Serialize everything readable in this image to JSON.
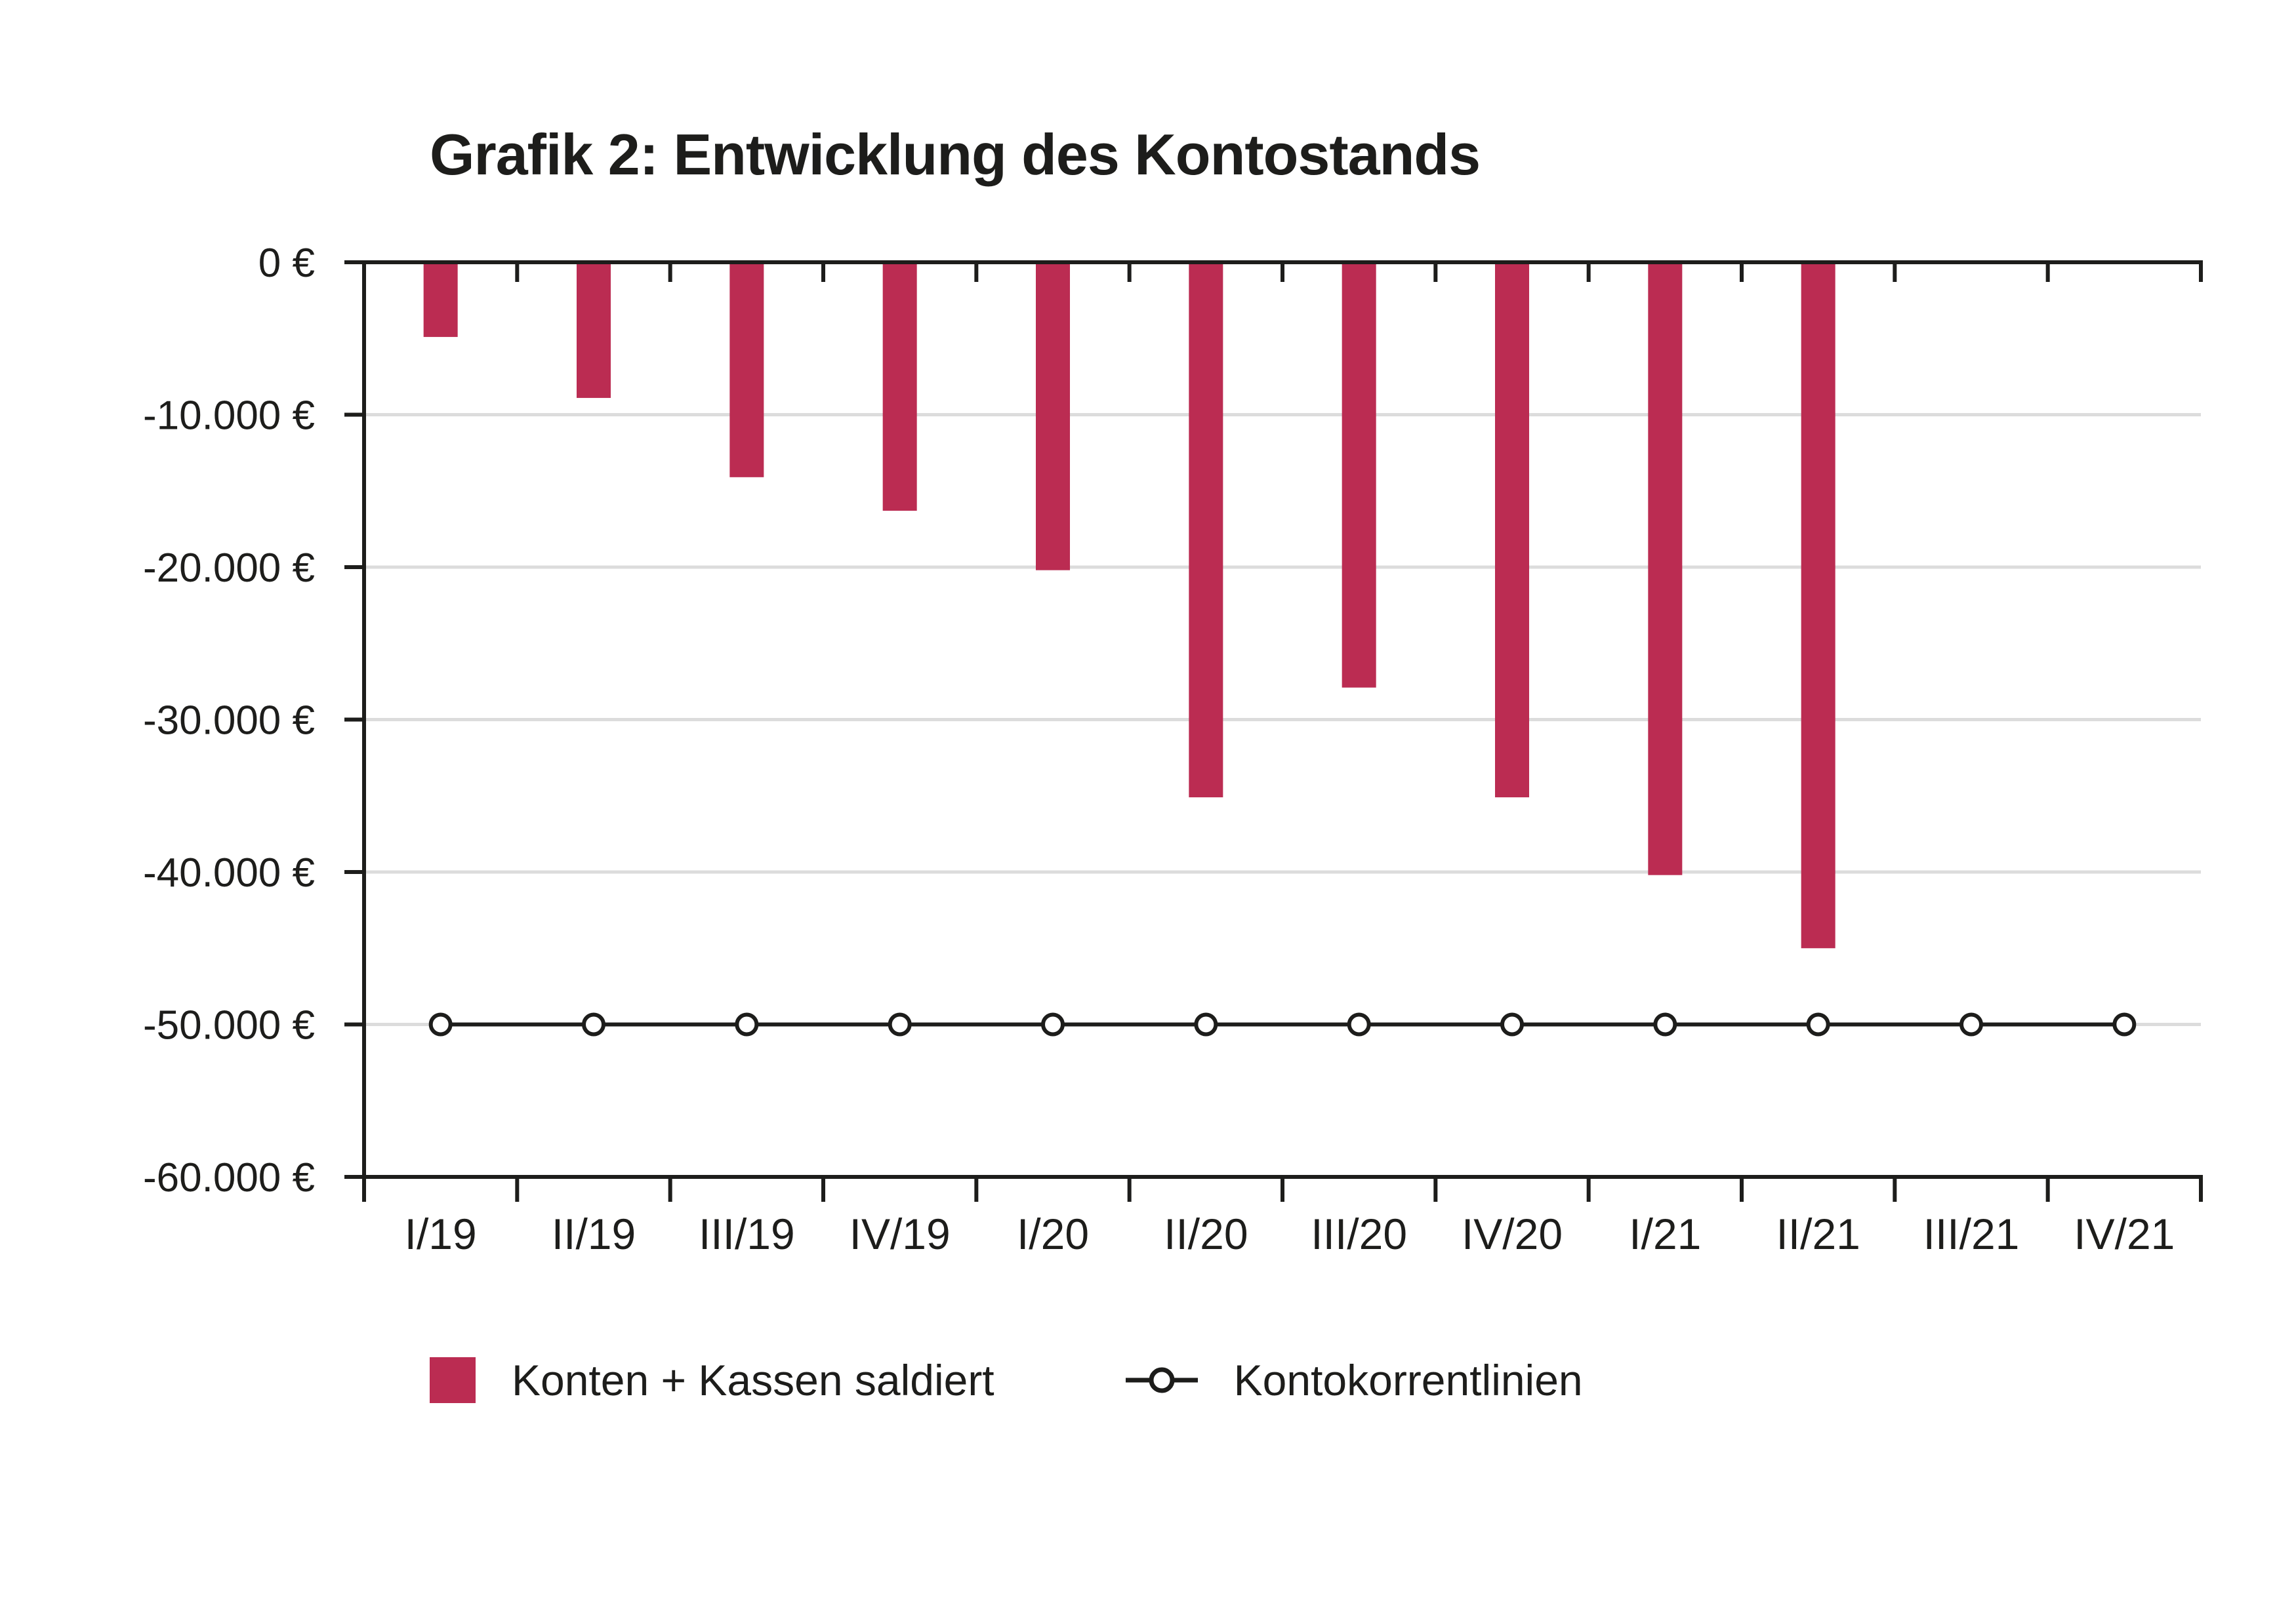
{
  "chart_data": {
    "type": "bar",
    "title": "Grafik 2: Entwicklung des Kontostands",
    "xlabel": "",
    "ylabel": "",
    "categories": [
      "I/19",
      "II/19",
      "III/19",
      "IV/19",
      "I/20",
      "II/20",
      "III/20",
      "IV/20",
      "I/21",
      "II/21",
      "III/21",
      "IV/21"
    ],
    "series": [
      {
        "name": "Konten + Kassen saldiert",
        "type": "bar",
        "color": "#bb2c52",
        "values": [
          -4900,
          -8900,
          -14100,
          -16300,
          -20200,
          -35100,
          -27900,
          -35100,
          -40200,
          -45000,
          null,
          null
        ]
      },
      {
        "name": "Kontokorrentlinien",
        "type": "line",
        "color": "#1d1d1b",
        "marker": "open-circle",
        "values": [
          -50000,
          -50000,
          -50000,
          -50000,
          -50000,
          -50000,
          -50000,
          -50000,
          -50000,
          -50000,
          -50000,
          -50000
        ]
      }
    ],
    "ylim": [
      -60000,
      0
    ],
    "yticks": [
      0,
      -10000,
      -20000,
      -30000,
      -40000,
      -50000,
      -60000
    ],
    "ytick_labels": [
      "0 €",
      "-10.000 €",
      "-20.000 €",
      "-30.000 €",
      "-40.000 €",
      "-50.000 €",
      "-60.000 €"
    ],
    "grid": true,
    "legend_position": "bottom-left"
  }
}
